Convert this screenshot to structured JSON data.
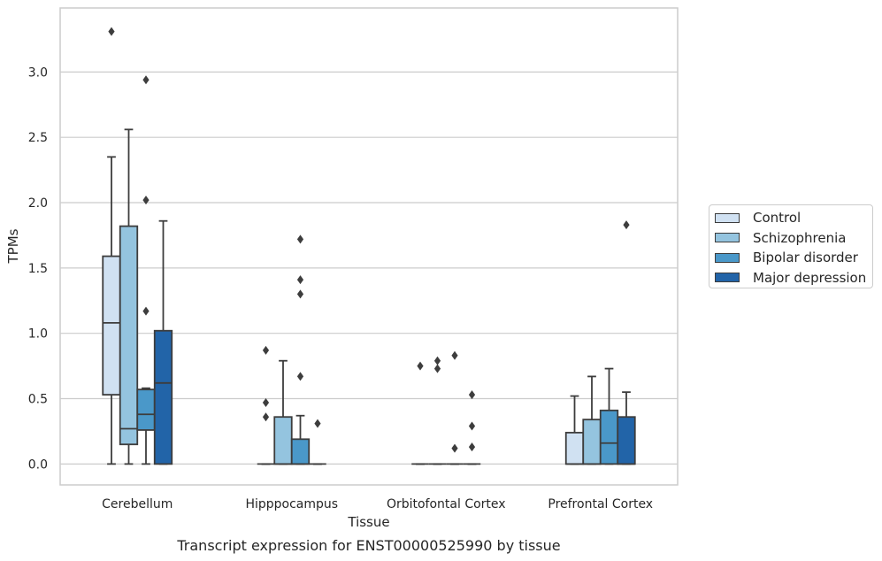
{
  "chart_data": {
    "type": "box",
    "title": "Transcript expression for ENST00000525990 by tissue",
    "xlabel": "Tissue",
    "ylabel": "TPMs",
    "ylim": [
      -0.16,
      3.49
    ],
    "yticks": [
      0.0,
      0.5,
      1.0,
      1.5,
      2.0,
      2.5,
      3.0
    ],
    "ytick_labels": [
      "0.0",
      "0.5",
      "1.0",
      "1.5",
      "2.0",
      "2.5",
      "3.0"
    ],
    "grid": "horizontal",
    "legend_position": "right",
    "categories": [
      "Cerebellum",
      "Hipppocampus",
      "Orbitofontal Cortex",
      "Prefrontal Cortex"
    ],
    "series": [
      {
        "name": "Control",
        "color": "#d0e1f2",
        "boxes": [
          {
            "q1": 0.53,
            "median": 1.08,
            "q3": 1.59,
            "whisker_low": 0.0,
            "whisker_high": 2.35,
            "outliers": [
              3.31
            ]
          },
          {
            "q1": 0.0,
            "median": 0.0,
            "q3": 0.0,
            "whisker_low": 0.0,
            "whisker_high": 0.0,
            "outliers": [
              0.36,
              0.47,
              0.87
            ]
          },
          {
            "q1": 0.0,
            "median": 0.0,
            "q3": 0.0,
            "whisker_low": 0.0,
            "whisker_high": 0.0,
            "outliers": [
              0.75
            ]
          },
          {
            "q1": 0.0,
            "median": 0.0,
            "q3": 0.24,
            "whisker_low": 0.0,
            "whisker_high": 0.52,
            "outliers": []
          }
        ]
      },
      {
        "name": "Schizophrenia",
        "color": "#94c4df",
        "boxes": [
          {
            "q1": 0.15,
            "median": 0.27,
            "q3": 1.82,
            "whisker_low": 0.0,
            "whisker_high": 2.56,
            "outliers": []
          },
          {
            "q1": 0.0,
            "median": 0.0,
            "q3": 0.36,
            "whisker_low": 0.0,
            "whisker_high": 0.79,
            "outliers": []
          },
          {
            "q1": 0.0,
            "median": 0.0,
            "q3": 0.0,
            "whisker_low": 0.0,
            "whisker_high": 0.0,
            "outliers": [
              0.73,
              0.79
            ]
          },
          {
            "q1": 0.0,
            "median": 0.0,
            "q3": 0.34,
            "whisker_low": 0.0,
            "whisker_high": 0.67,
            "outliers": []
          }
        ]
      },
      {
        "name": "Bipolar disorder",
        "color": "#4a98c9",
        "boxes": [
          {
            "q1": 0.26,
            "median": 0.38,
            "q3": 0.57,
            "whisker_low": 0.0,
            "whisker_high": 0.58,
            "outliers": [
              1.17,
              2.02,
              2.94
            ]
          },
          {
            "q1": 0.0,
            "median": 0.0,
            "q3": 0.19,
            "whisker_low": 0.0,
            "whisker_high": 0.37,
            "outliers": [
              0.67,
              1.3,
              1.41,
              1.72
            ]
          },
          {
            "q1": 0.0,
            "median": 0.0,
            "q3": 0.0,
            "whisker_low": 0.0,
            "whisker_high": 0.0,
            "outliers": [
              0.12,
              0.83
            ]
          },
          {
            "q1": 0.0,
            "median": 0.16,
            "q3": 0.41,
            "whisker_low": 0.0,
            "whisker_high": 0.73,
            "outliers": []
          }
        ]
      },
      {
        "name": "Major depression",
        "color": "#2264a8",
        "boxes": [
          {
            "q1": 0.0,
            "median": 0.62,
            "q3": 1.02,
            "whisker_low": 0.0,
            "whisker_high": 1.86,
            "outliers": []
          },
          {
            "q1": 0.0,
            "median": 0.0,
            "q3": 0.0,
            "whisker_low": 0.0,
            "whisker_high": 0.0,
            "outliers": [
              0.31
            ]
          },
          {
            "q1": 0.0,
            "median": 0.0,
            "q3": 0.0,
            "whisker_low": 0.0,
            "whisker_high": 0.0,
            "outliers": [
              0.13,
              0.29,
              0.53
            ]
          },
          {
            "q1": 0.0,
            "median": 0.0,
            "q3": 0.36,
            "whisker_low": 0.0,
            "whisker_high": 0.55,
            "outliers": [
              1.83
            ]
          }
        ]
      }
    ]
  }
}
